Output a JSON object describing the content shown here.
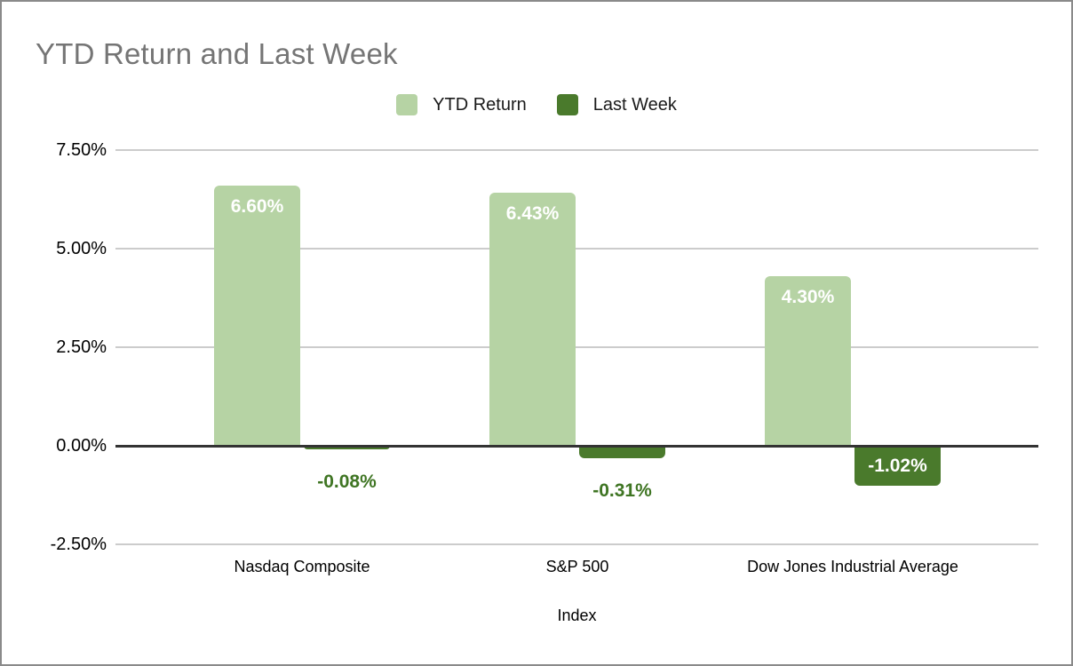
{
  "chart_data": {
    "type": "bar",
    "title": "YTD Return and Last Week",
    "xlabel": "Index",
    "ylabel": "",
    "categories": [
      "Nasdaq Composite",
      "S&P 500",
      "Dow Jones Industrial Average"
    ],
    "series": [
      {
        "name": "YTD Return",
        "color": "#b6d3a4",
        "values": [
          6.6,
          6.43,
          4.3
        ],
        "labels": [
          "6.60%",
          "6.43%",
          "4.30%"
        ]
      },
      {
        "name": "Last Week",
        "color": "#4a7a2c",
        "values": [
          -0.08,
          -0.31,
          -1.02
        ],
        "labels": [
          "-0.08%",
          "-0.31%",
          "-1.02%"
        ]
      }
    ],
    "y_axis": {
      "ylim": [
        -2.5,
        7.5
      ],
      "ticks": [
        {
          "label": "7.50%",
          "value": 7.5
        },
        {
          "label": "5.00%",
          "value": 5.0
        },
        {
          "label": "2.50%",
          "value": 2.5
        },
        {
          "label": "0.00%",
          "value": 0.0
        },
        {
          "label": "-2.50%",
          "value": -2.5
        }
      ]
    },
    "grid": true,
    "legend_position": "top"
  },
  "colors": {
    "title_text": "#757575",
    "grid_line": "#cccccc",
    "zero_line": "#333333",
    "inside_label": "#ffffff",
    "outside_label": "#3f7523",
    "canvas_border": "#8a8a8a",
    "background": "#ffffff"
  }
}
